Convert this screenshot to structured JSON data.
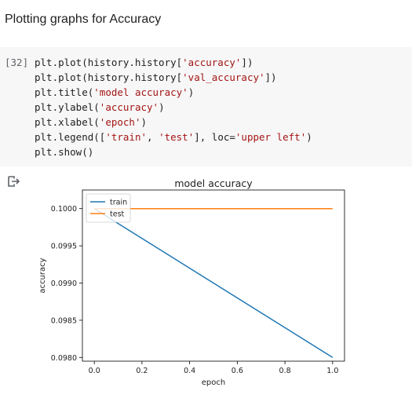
{
  "text_cell": {
    "heading": "Plotting graphs for Accuracy"
  },
  "code_cell": {
    "prompt": "[32]",
    "lines": [
      [
        {
          "t": "plt.plot(history.history["
        },
        {
          "t": "'accuracy'",
          "s": 1
        },
        {
          "t": "])"
        }
      ],
      [
        {
          "t": "plt.plot(history.history["
        },
        {
          "t": "'val_accuracy'",
          "s": 1
        },
        {
          "t": "])"
        }
      ],
      [
        {
          "t": "plt.title("
        },
        {
          "t": "'model accuracy'",
          "s": 1
        },
        {
          "t": ")"
        }
      ],
      [
        {
          "t": "plt.ylabel("
        },
        {
          "t": "'accuracy'",
          "s": 1
        },
        {
          "t": ")"
        }
      ],
      [
        {
          "t": "plt.xlabel("
        },
        {
          "t": "'epoch'",
          "s": 1
        },
        {
          "t": ")"
        }
      ],
      [
        {
          "t": "plt.legend(["
        },
        {
          "t": "'train'",
          "s": 1
        },
        {
          "t": ", "
        },
        {
          "t": "'test'",
          "s": 1
        },
        {
          "t": "], loc="
        },
        {
          "t": "'upper left'",
          "s": 1
        },
        {
          "t": ")"
        }
      ],
      [
        {
          "t": "plt.show()"
        }
      ]
    ]
  },
  "output": {
    "icon": "output-arrow-icon"
  },
  "chart_data": {
    "type": "line",
    "title": "model accuracy",
    "xlabel": "epoch",
    "ylabel": "accuracy",
    "xlim": [
      -0.05,
      1.05
    ],
    "ylim": [
      0.09795,
      0.10025
    ],
    "xticks": [
      0.0,
      0.2,
      0.4,
      0.6,
      0.8,
      1.0
    ],
    "xtick_labels": [
      "0.0",
      "0.2",
      "0.4",
      "0.6",
      "0.8",
      "1.0"
    ],
    "yticks": [
      0.098,
      0.0985,
      0.099,
      0.0995,
      0.1
    ],
    "ytick_labels": [
      "0.0980",
      "0.0985",
      "0.0990",
      "0.0995",
      "0.1000"
    ],
    "legend_loc": "upper left",
    "grid": false,
    "series": [
      {
        "name": "train",
        "x": [
          0,
          1
        ],
        "values": [
          0.1,
          0.098
        ],
        "color": "#1f77b4"
      },
      {
        "name": "test",
        "x": [
          0,
          1
        ],
        "values": [
          0.1,
          0.1
        ],
        "color": "#ff7f0e"
      }
    ]
  }
}
